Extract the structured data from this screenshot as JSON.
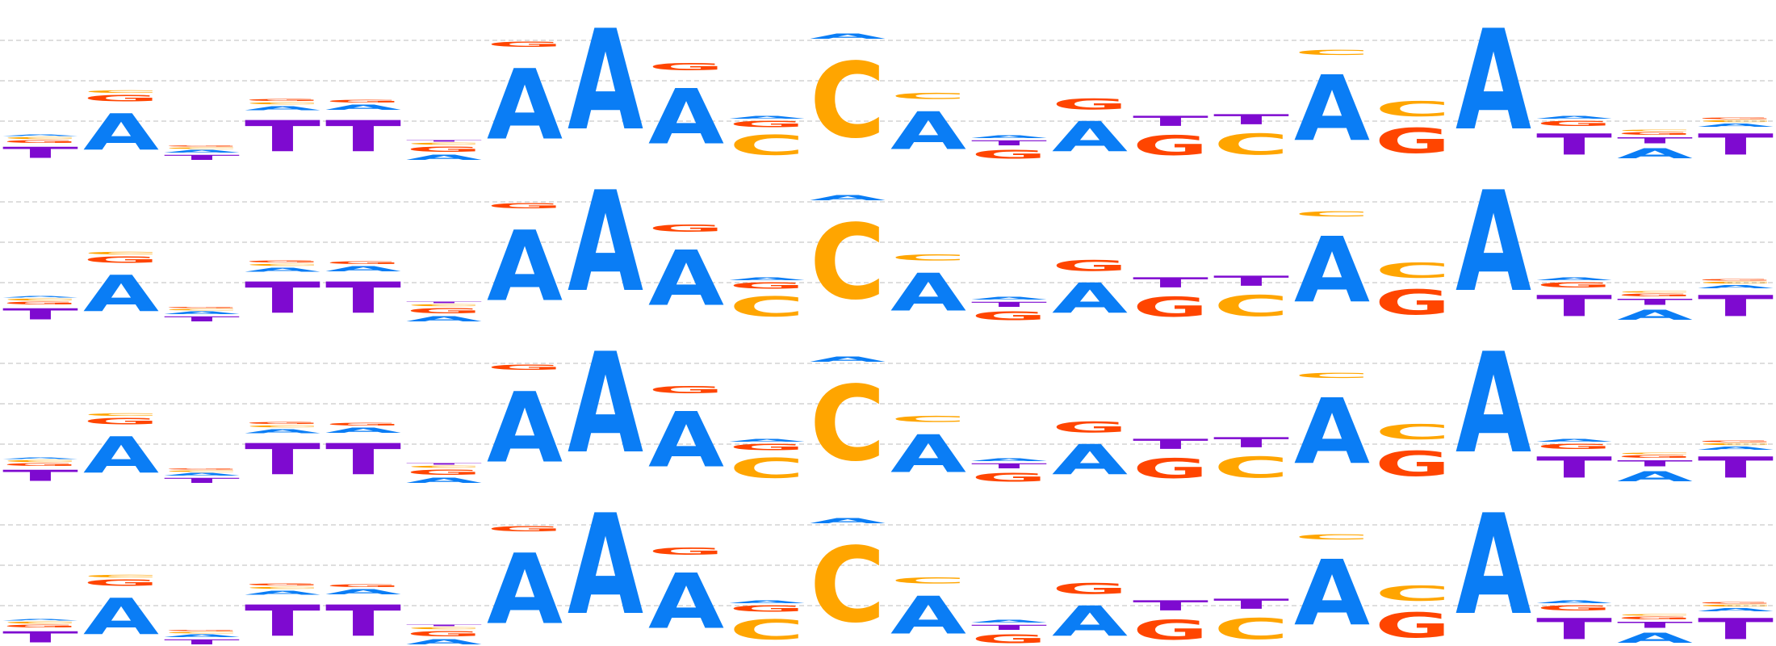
{
  "colors": {
    "A": "#0a7df5",
    "C": "#ffa500",
    "G": "#ff4500",
    "T": "#7e0ad0",
    "gridline": "#bdbdbd"
  },
  "logos": [
    {
      "name": "motif-logo-row-1"
    },
    {
      "name": "motif-logo-row-2"
    },
    {
      "name": "motif-logo-row-3"
    },
    {
      "name": "motif-logo-row-4"
    }
  ],
  "chart_data": {
    "type": "sequence_logo",
    "alphabet": [
      "A",
      "C",
      "G",
      "T"
    ],
    "columns": [
      [
        {
          "b": "T",
          "h": 0.22
        },
        {
          "b": "G",
          "h": 0.05
        },
        {
          "b": "C",
          "h": 0.04
        },
        {
          "b": "A",
          "h": 0.03
        }
      ],
      [
        {
          "b": "A",
          "h": 0.72
        },
        {
          "b": "G",
          "h": 0.12
        },
        {
          "b": "C",
          "h": 0.05
        }
      ],
      [
        {
          "b": "T",
          "h": 0.1
        },
        {
          "b": "A",
          "h": 0.05
        },
        {
          "b": "C",
          "h": 0.03
        },
        {
          "b": "G",
          "h": 0.02
        }
      ],
      [
        {
          "b": "T",
          "h": 0.62
        },
        {
          "b": "A",
          "h": 0.08
        },
        {
          "b": "C",
          "h": 0.04
        },
        {
          "b": "G",
          "h": 0.04
        }
      ],
      [
        {
          "b": "T",
          "h": 0.62
        },
        {
          "b": "A",
          "h": 0.1
        },
        {
          "b": "G",
          "h": 0.05
        }
      ],
      [
        {
          "b": "A",
          "h": 0.1
        },
        {
          "b": "G",
          "h": 0.1
        },
        {
          "b": "C",
          "h": 0.04
        },
        {
          "b": "T",
          "h": 0.03
        }
      ],
      [
        {
          "b": "A",
          "h": 1.4
        },
        {
          "b": "G",
          "h": 0.1
        }
      ],
      [
        {
          "b": "A",
          "h": 2.0
        }
      ],
      [
        {
          "b": "A",
          "h": 1.1
        },
        {
          "b": "G",
          "h": 0.15
        }
      ],
      [
        {
          "b": "C",
          "h": 0.4
        },
        {
          "b": "G",
          "h": 0.12
        },
        {
          "b": "A",
          "h": 0.05
        }
      ],
      [
        {
          "b": "C",
          "h": 1.5
        },
        {
          "b": "A",
          "h": 0.1
        }
      ],
      [
        {
          "b": "A",
          "h": 0.75
        },
        {
          "b": "C",
          "h": 0.12
        }
      ],
      [
        {
          "b": "G",
          "h": 0.18
        },
        {
          "b": "T",
          "h": 0.1
        },
        {
          "b": "A",
          "h": 0.05
        }
      ],
      [
        {
          "b": "A",
          "h": 0.6
        },
        {
          "b": "G",
          "h": 0.22
        }
      ],
      [
        {
          "b": "G",
          "h": 0.4
        },
        {
          "b": "T",
          "h": 0.2
        }
      ],
      [
        {
          "b": "C",
          "h": 0.42
        },
        {
          "b": "T",
          "h": 0.2
        }
      ],
      [
        {
          "b": "A",
          "h": 1.3
        },
        {
          "b": "C",
          "h": 0.1
        }
      ],
      [
        {
          "b": "G",
          "h": 0.5
        },
        {
          "b": "C",
          "h": 0.3
        }
      ],
      [
        {
          "b": "A",
          "h": 2.0
        }
      ],
      [
        {
          "b": "T",
          "h": 0.42
        },
        {
          "b": "G",
          "h": 0.1
        },
        {
          "b": "A",
          "h": 0.05
        }
      ],
      [
        {
          "b": "A",
          "h": 0.2
        },
        {
          "b": "T",
          "h": 0.12
        },
        {
          "b": "G",
          "h": 0.05
        },
        {
          "b": "C",
          "h": 0.03
        }
      ],
      [
        {
          "b": "T",
          "h": 0.42
        },
        {
          "b": "A",
          "h": 0.06
        },
        {
          "b": "C",
          "h": 0.04
        },
        {
          "b": "G",
          "h": 0.03
        }
      ]
    ],
    "ylim": [
      0,
      2
    ],
    "gridlines": [
      0.5,
      1.0,
      1.5
    ]
  }
}
